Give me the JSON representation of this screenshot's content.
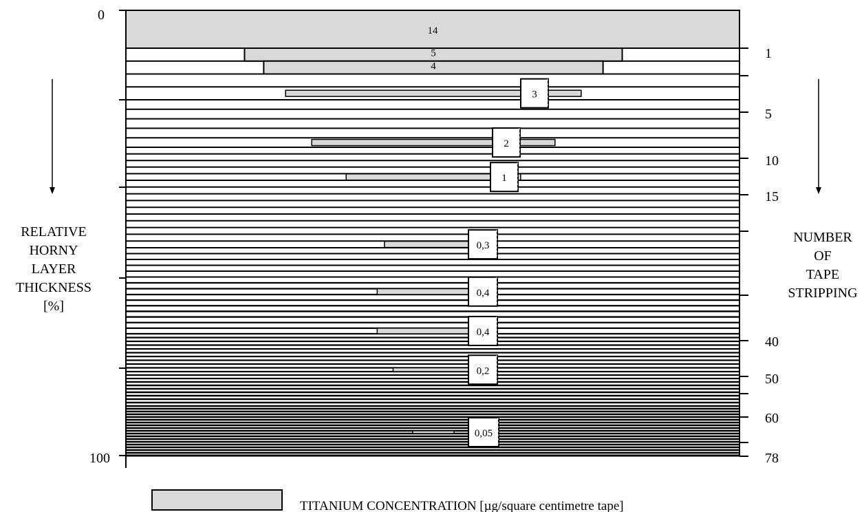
{
  "chart_data": {
    "type": "bar",
    "title": "",
    "left_axis": {
      "label_lines": [
        "RELATIVE",
        "HORNY",
        "LAYER",
        "THICKNESS",
        "[%]"
      ],
      "range": [
        0,
        100
      ],
      "tick_labels": [
        "0",
        "100"
      ]
    },
    "right_axis": {
      "label_lines": [
        "NUMBER",
        "OF",
        "TAPE",
        "STRIPPING"
      ],
      "range": [
        0,
        78
      ],
      "tick_labels": [
        "1",
        "5",
        "10",
        "15",
        "40",
        "50",
        "60",
        "78"
      ]
    },
    "series": [
      {
        "name": "TITANIUM  CONCENTRATION  [µg/square centimetre tape]",
        "color": "#d9d9d9",
        "points": [
          {
            "strip": 1,
            "value": "14",
            "label_style": "inside"
          },
          {
            "strip": 2,
            "value": "5",
            "label_style": "inside"
          },
          {
            "strip": 3,
            "value": "4",
            "label_style": "inside"
          },
          {
            "strip": 5,
            "value": "3",
            "label_style": "box"
          },
          {
            "strip": 10,
            "value": "2",
            "label_style": "box"
          },
          {
            "strip": 15,
            "value": "1",
            "label_style": "box"
          },
          {
            "strip": 25,
            "value": "0,3",
            "label_style": "box"
          },
          {
            "strip": 33,
            "value": "0,4",
            "label_style": "box"
          },
          {
            "strip": 40,
            "value": "0,4",
            "label_style": "box"
          },
          {
            "strip": 50,
            "value": "0,2",
            "label_style": "box"
          },
          {
            "strip": 70,
            "value": "0,05",
            "label_style": "box"
          }
        ]
      }
    ],
    "legend": {
      "position": "bottom",
      "text": "TITANIUM  CONCENTRATION  [µg/square centimetre tape]"
    },
    "grid": false
  }
}
